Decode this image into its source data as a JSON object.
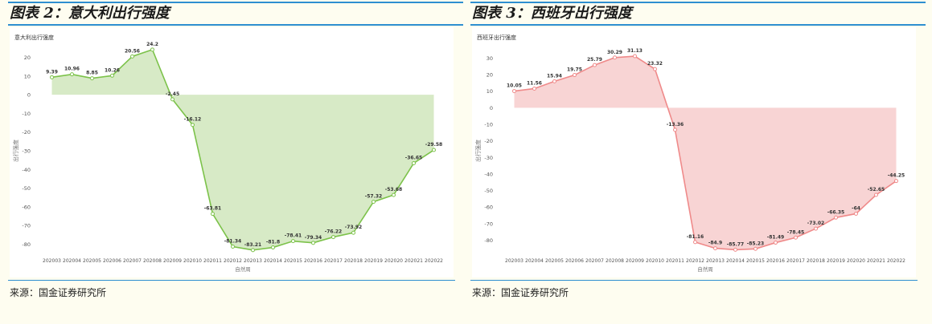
{
  "panels": [
    {
      "title": "图表 2：意大利出行强度",
      "source": "来源：国金证券研究所"
    },
    {
      "title": "图表 3：西班牙出行强度",
      "source": "来源：国金证券研究所"
    }
  ],
  "chart_data": [
    {
      "type": "area",
      "title": "意大利出行强度",
      "xlabel": "自然周",
      "ylabel": "出行强度",
      "categories": [
        "202003",
        "202004",
        "202005",
        "202006",
        "202007",
        "202008",
        "202009",
        "202010",
        "202011",
        "202012",
        "202013",
        "202014",
        "202015",
        "202016",
        "202017",
        "202018",
        "202019",
        "202020",
        "202021",
        "202022"
      ],
      "series": [
        {
          "values": [
            9.39,
            10.96,
            8.85,
            10.26,
            20.56,
            24.2,
            -2.45,
            -16.12,
            -63.81,
            -81.34,
            -83.21,
            -81.8,
            -78.41,
            -79.34,
            -76.22,
            -73.92,
            -57.32,
            -53.68,
            -36.65,
            -29.58
          ]
        }
      ],
      "labels": [
        "9.39",
        "10.96",
        "8.85",
        "10.26",
        "20.56",
        "24.2",
        "-2.45",
        "-16.12",
        "-63.81",
        "-81.34",
        "-83.21",
        "-81.8",
        "-78.41",
        "-79.34",
        "-76.22",
        "-73.92",
        "-57.32",
        "-53.68",
        "-36.65",
        "-29.58"
      ],
      "yticks": [
        "20",
        "10",
        "0",
        "-10",
        "-20",
        "-30",
        "-40",
        "-50",
        "-60",
        "-70",
        "-80"
      ],
      "ylim": [
        -85,
        25
      ],
      "grid": false,
      "colors": {
        "line": "#7cc24a",
        "fill": "#d7eac6"
      }
    },
    {
      "type": "area",
      "title": "西班牙出行强度",
      "xlabel": "自然周",
      "ylabel": "出行强度",
      "categories": [
        "202003",
        "202004",
        "202005",
        "202006",
        "202007",
        "202008",
        "202009",
        "202010",
        "202011",
        "202012",
        "202013",
        "202014",
        "202015",
        "202016",
        "202017",
        "202018",
        "202019",
        "202020",
        "202021",
        "202022"
      ],
      "series": [
        {
          "values": [
            10.05,
            11.56,
            15.94,
            19.75,
            25.79,
            30.29,
            31.13,
            23.32,
            -13.36,
            -81.16,
            -84.9,
            -85.77,
            -85.23,
            -81.49,
            -78.45,
            -73.02,
            -66.35,
            -64,
            -52.65,
            -44.25
          ]
        }
      ],
      "labels": [
        "10.05",
        "11.56",
        "15.94",
        "19.75",
        "25.79",
        "30.29",
        "31.13",
        "23.32",
        "-13.36",
        "-81.16",
        "-84.9",
        "-85.77",
        "-85.23",
        "-81.49",
        "-78.45",
        "-73.02",
        "-66.35",
        "-64",
        "-52.65",
        "-44.25"
      ],
      "yticks": [
        "30",
        "20",
        "10",
        "0",
        "-10",
        "-20",
        "-30",
        "-40",
        "-50",
        "-60",
        "-70",
        "-80"
      ],
      "ylim": [
        -88,
        36
      ],
      "grid": false,
      "colors": {
        "line": "#ef8a8a",
        "fill": "#f8d4d4"
      }
    }
  ]
}
